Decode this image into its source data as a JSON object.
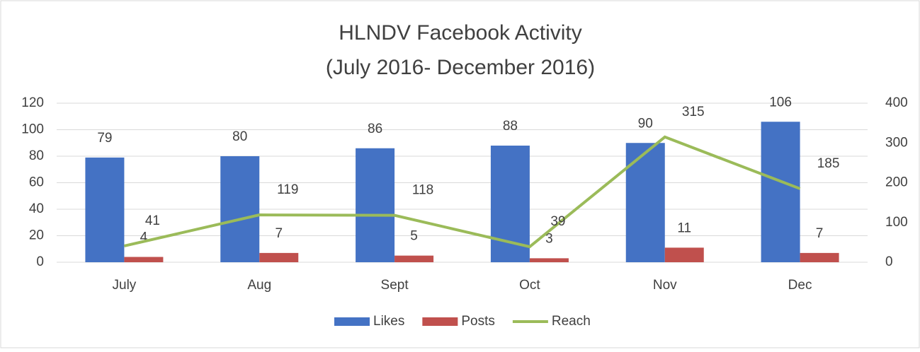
{
  "chart_data": {
    "type": "bar_line",
    "title": "HLNDV Facebook Activity",
    "subtitle": "(July 2016- December 2016)",
    "categories": [
      "July",
      "Aug",
      "Sept",
      "Oct",
      "Nov",
      "Dec"
    ],
    "series": [
      {
        "name": "Likes",
        "color": "#4472c4",
        "type": "bar",
        "values": [
          79,
          80,
          86,
          88,
          90,
          106
        ]
      },
      {
        "name": "Posts",
        "color": "#c0504d",
        "type": "bar",
        "values": [
          4,
          7,
          5,
          3,
          11,
          7
        ]
      },
      {
        "name": "Reach",
        "color": "#9bbb59",
        "type": "line",
        "axis": "y2",
        "values": [
          41,
          119,
          118,
          39,
          315,
          185
        ]
      }
    ],
    "ylim": [
      0,
      120
    ],
    "yticks": [
      0,
      20,
      40,
      60,
      80,
      100,
      120
    ],
    "y2lim": [
      0,
      400
    ],
    "y2ticks": [
      0,
      100,
      200,
      300,
      400
    ],
    "grid": true,
    "legend": "bottom"
  }
}
